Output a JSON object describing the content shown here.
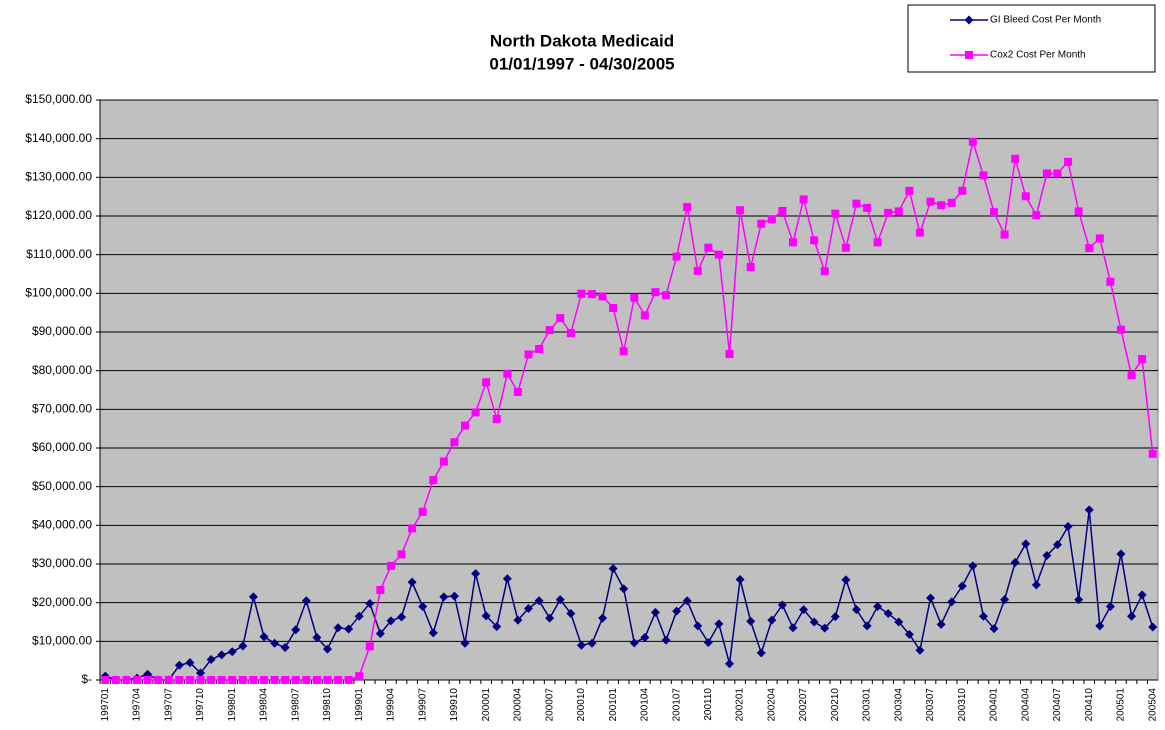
{
  "chart_data": {
    "type": "line",
    "title": [
      "North Dakota Medicaid",
      "01/01/1997 - 04/30/2005"
    ],
    "categories": [
      "199701",
      null,
      null,
      "199704",
      null,
      null,
      "199707",
      null,
      null,
      "199710",
      null,
      null,
      "199801",
      null,
      null,
      "199804",
      null,
      null,
      "199807",
      null,
      null,
      "199810",
      null,
      null,
      "199901",
      null,
      null,
      "199904",
      null,
      null,
      "199907",
      null,
      null,
      "199910",
      null,
      null,
      "200001",
      null,
      null,
      "200004",
      null,
      null,
      "200007",
      null,
      null,
      "200010",
      null,
      null,
      "200101",
      null,
      null,
      "200104",
      null,
      null,
      "200107",
      null,
      null,
      "200110",
      null,
      null,
      "200201",
      null,
      null,
      "200204",
      null,
      null,
      "200207",
      null,
      null,
      "200210",
      null,
      null,
      "200301",
      null,
      null,
      "200304",
      null,
      null,
      "200307",
      null,
      null,
      "200310",
      null,
      null,
      "200401",
      null,
      null,
      "200404",
      null,
      null,
      "200407",
      null,
      null,
      "200410",
      null,
      null,
      "200501",
      null,
      null,
      "200504"
    ],
    "series": [
      {
        "name": "GI Bleed Cost Per Month",
        "color": "#000080",
        "marker": "diamond",
        "values": [
          1000,
          0,
          0,
          500,
          1500,
          0,
          0,
          3800,
          4500,
          1800,
          5300,
          6500,
          7300,
          8800,
          21500,
          11200,
          9500,
          8400,
          13000,
          20500,
          11000,
          8000,
          13500,
          13200,
          16500,
          19800,
          12000,
          15300,
          16300,
          25300,
          19000,
          12200,
          21500,
          21700,
          9500,
          27500,
          16600,
          13800,
          26200,
          15500,
          18500,
          20500,
          16000,
          20800,
          17200,
          9000,
          9500,
          16000,
          28800,
          23600,
          9600,
          11000,
          17500,
          10300,
          17800,
          20500,
          14000,
          9700,
          14500,
          4200,
          26000,
          15200,
          7000,
          15500,
          19400,
          13500,
          18200,
          15000,
          13400,
          16400,
          25900,
          18200,
          14000,
          19000,
          17200,
          15000,
          11800,
          7700,
          21200,
          14400,
          20200,
          24300,
          29500,
          16500,
          13300,
          20800,
          30400,
          35200,
          24600,
          32200,
          35000,
          39700,
          20800,
          44000,
          14000,
          19000,
          32600,
          16500,
          22000,
          13700
        ]
      },
      {
        "name": "Cox2 Cost Per Month",
        "color": "#ff00ff",
        "marker": "square",
        "values": [
          0,
          0,
          0,
          0,
          0,
          0,
          0,
          0,
          0,
          0,
          0,
          0,
          0,
          0,
          0,
          0,
          0,
          0,
          0,
          0,
          0,
          0,
          0,
          0,
          1000,
          8700,
          23300,
          29500,
          32500,
          39200,
          43500,
          51700,
          56500,
          61500,
          65800,
          69200,
          77000,
          67500,
          79200,
          74500,
          84200,
          85600,
          90500,
          93600,
          89700,
          99900,
          99800,
          99200,
          96200,
          85000,
          98900,
          94300,
          100300,
          99500,
          109500,
          122300,
          105800,
          111800,
          110000,
          84300,
          121500,
          106800,
          118000,
          119200,
          121300,
          113200,
          124300,
          113700,
          105700,
          120600,
          111800,
          123200,
          122100,
          113200,
          120800,
          121200,
          126500,
          115700,
          123700,
          122800,
          123400,
          126500,
          139200,
          130500,
          121000,
          115200,
          134800,
          125100,
          120200,
          131000,
          131000,
          134000,
          121200,
          111700,
          114200,
          103000,
          90600,
          78800,
          83000,
          58500
        ]
      }
    ],
    "ylim": [
      0,
      150000
    ],
    "yticks": [
      {
        "value": 0,
        "label": "$-"
      },
      {
        "value": 10000,
        "label": "$10,000.00"
      },
      {
        "value": 20000,
        "label": "$20,000.00"
      },
      {
        "value": 30000,
        "label": "$30,000.00"
      },
      {
        "value": 40000,
        "label": "$40,000.00"
      },
      {
        "value": 50000,
        "label": "$50,000.00"
      },
      {
        "value": 60000,
        "label": "$60,000.00"
      },
      {
        "value": 70000,
        "label": "$70,000.00"
      },
      {
        "value": 80000,
        "label": "$80,000.00"
      },
      {
        "value": 90000,
        "label": "$90,000.00"
      },
      {
        "value": 100000,
        "label": "$100,000.00"
      },
      {
        "value": 110000,
        "label": "$110,000.00"
      },
      {
        "value": 120000,
        "label": "$120,000.00"
      },
      {
        "value": 130000,
        "label": "$130,000.00"
      },
      {
        "value": 140000,
        "label": "$140,000.00"
      },
      {
        "value": 150000,
        "label": "$150,000.00"
      }
    ],
    "grid": true,
    "plot_background": "#c0c0c0",
    "legend": "top-right"
  }
}
